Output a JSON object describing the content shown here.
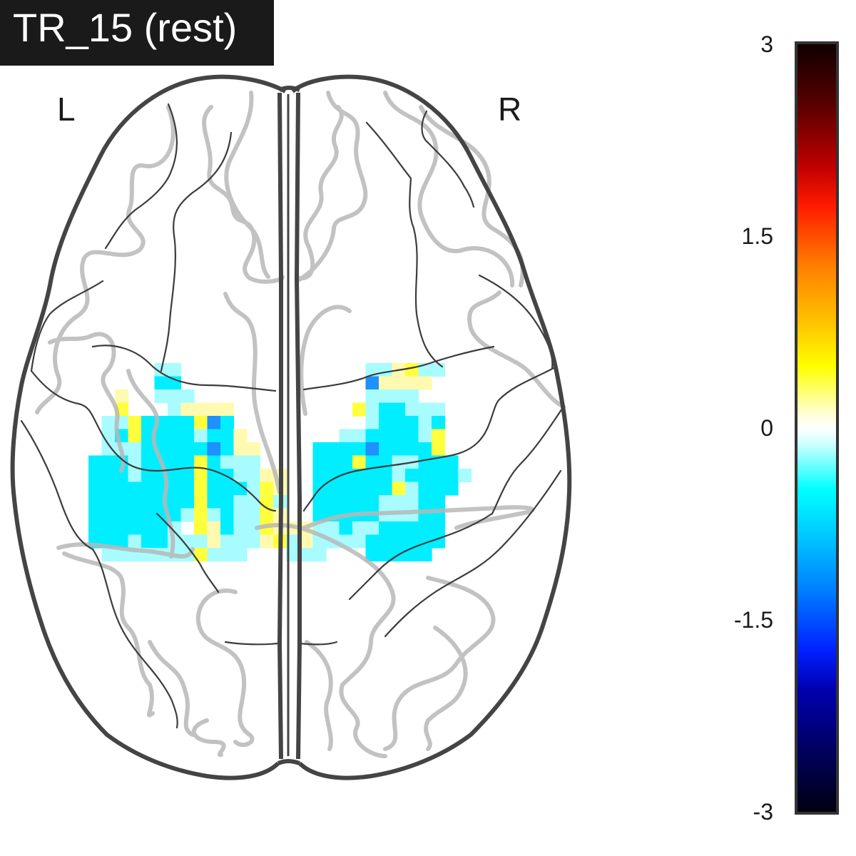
{
  "title": "TR_15 (rest)",
  "orientation": {
    "left": "L",
    "right": "R"
  },
  "chart_data": {
    "type": "heatmap",
    "title": "TR_15 (rest)",
    "colormap": "cold_hot",
    "vmin": -3,
    "vmax": 3,
    "colorbar_ticks": [
      "3",
      "1.5",
      "0",
      "-1.5",
      "-3"
    ],
    "colorbar_tick_values": [
      3,
      1.5,
      0,
      -1.5,
      -3
    ],
    "legend_position": "right",
    "colors": {
      "outline": "#444444",
      "sulci": "#b8b8b8",
      "title_bg": "#1a1a1a"
    },
    "grid": {
      "x_start": 124,
      "y_start": 509,
      "cell": 18.5,
      "columns": 29,
      "rows": 15,
      "cells": [
        [
          0,
          0,
          0,
          0,
          0,
          -1,
          -1,
          0,
          0,
          0,
          0,
          0,
          0,
          0,
          0,
          0,
          0,
          0,
          0,
          0,
          0,
          -1,
          -1,
          1,
          2,
          -1,
          -1,
          0,
          0
        ],
        [
          0,
          0,
          0,
          0,
          0,
          -2,
          -2,
          0,
          0,
          0,
          0,
          0,
          0,
          0,
          0,
          0,
          0,
          0,
          0,
          0,
          0,
          -3,
          1,
          1,
          1,
          1,
          0,
          0,
          0
        ],
        [
          0,
          0,
          1,
          0,
          0,
          -1,
          -1,
          -1,
          0,
          0,
          0,
          0,
          0,
          0,
          0,
          0,
          0,
          0,
          0,
          0,
          0,
          -1,
          -1,
          -1,
          -1,
          0,
          0,
          0,
          0
        ],
        [
          0,
          0,
          2,
          0,
          0,
          0,
          -1,
          1,
          1,
          1,
          1,
          0,
          0,
          0,
          0,
          0,
          0,
          0,
          0,
          0,
          2,
          -1,
          -2,
          -2,
          -1,
          -1,
          -1,
          0,
          0
        ],
        [
          0,
          -1,
          -1,
          2,
          -2,
          -2,
          -2,
          -2,
          2,
          -3,
          -2,
          0,
          0,
          0,
          0,
          0,
          0,
          0,
          0,
          0,
          0,
          -1,
          -2,
          -2,
          -2,
          -1,
          -2,
          0,
          0
        ],
        [
          0,
          -1,
          -2,
          2,
          -2,
          -2,
          -2,
          -2,
          -1,
          -2,
          -2,
          1,
          0,
          0,
          0,
          0,
          0,
          0,
          0,
          -1,
          -1,
          -2,
          -2,
          -2,
          -2,
          -1,
          2,
          0,
          0
        ],
        [
          0,
          -1,
          -1,
          -1,
          -2,
          -2,
          -2,
          -2,
          -2,
          -3,
          -2,
          1,
          1,
          0,
          0,
          0,
          0,
          -2,
          -2,
          -2,
          -2,
          -3,
          -2,
          -2,
          -2,
          -2,
          2,
          0,
          0
        ],
        [
          -2,
          -2,
          -2,
          -1,
          -2,
          -2,
          -2,
          -2,
          2,
          -2,
          -1,
          -1,
          -1,
          0,
          0,
          0,
          0,
          -2,
          -2,
          -2,
          2,
          -2,
          -2,
          -1,
          -1,
          -2,
          -2,
          -2,
          0
        ],
        [
          -2,
          -2,
          -2,
          -1,
          -2,
          -2,
          -2,
          -2,
          2,
          -2,
          -2,
          -1,
          -1,
          1,
          1,
          0,
          0,
          -2,
          -2,
          -2,
          -2,
          -2,
          -2,
          -1,
          -2,
          -2,
          -2,
          -2,
          -1
        ],
        [
          -2,
          -2,
          -2,
          -2,
          -2,
          -2,
          -2,
          -2,
          2,
          -2,
          -2,
          -2,
          -1,
          2,
          1,
          0,
          0,
          -2,
          -2,
          -2,
          -2,
          -2,
          -2,
          2,
          -1,
          -2,
          -2,
          -2,
          0
        ],
        [
          -2,
          -2,
          -2,
          -2,
          -2,
          -2,
          -2,
          -2,
          2,
          -2,
          -2,
          -1,
          -1,
          2,
          -1,
          0,
          0,
          -2,
          -2,
          -2,
          -2,
          -2,
          -1,
          -1,
          -1,
          -2,
          -2,
          0,
          0
        ],
        [
          -2,
          -2,
          -2,
          -2,
          -2,
          -2,
          -2,
          -1,
          2,
          -1,
          -2,
          -1,
          -1,
          2,
          1,
          0,
          0,
          -2,
          -2,
          -2,
          -2,
          -2,
          -1,
          -1,
          -1,
          -2,
          -2,
          0,
          0
        ],
        [
          -2,
          -2,
          -2,
          -2,
          -2,
          -2,
          -1,
          0,
          2,
          1,
          -2,
          -1,
          -1,
          2,
          1,
          1,
          1,
          -1,
          -1,
          -2,
          -1,
          -1,
          -2,
          -2,
          -2,
          -2,
          -2,
          0,
          0
        ],
        [
          -2,
          -2,
          -2,
          -1,
          -2,
          -2,
          -1,
          -1,
          -1,
          1,
          -1,
          -1,
          -1,
          1,
          2,
          -1,
          1,
          -1,
          -1,
          -1,
          -1,
          -2,
          -2,
          -2,
          -2,
          -2,
          -2,
          0,
          0
        ],
        [
          0,
          -1,
          -1,
          -1,
          -1,
          -1,
          -1,
          -1,
          2,
          -1,
          -1,
          -1,
          0,
          0,
          0,
          -1,
          -1,
          -1,
          0,
          0,
          0,
          -2,
          -2,
          -2,
          -2,
          -2,
          0,
          0,
          0
        ]
      ]
    }
  }
}
